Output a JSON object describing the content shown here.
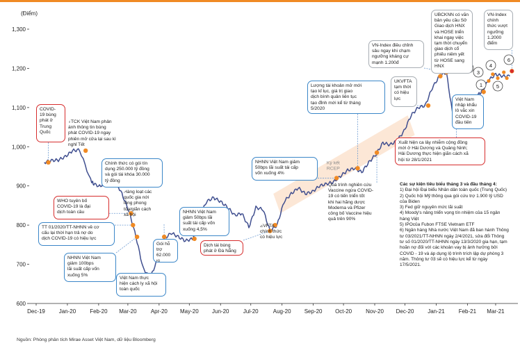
{
  "chart_data": {
    "type": "line",
    "title": "",
    "ylabel": "(Điểm)",
    "xlabel": "",
    "ylim": [
      600,
      1300
    ],
    "yticks": [
      "1,300",
      "1,200",
      "1,100",
      "1,000",
      "900",
      "800",
      "700",
      "600"
    ],
    "xticks": [
      "Dec-19",
      "Jan-20",
      "Feb-20",
      "Mar-20",
      "Apr-20",
      "May-20",
      "Jun-20",
      "Jul-20",
      "Aug-20",
      "Sep-20",
      "Oct-20",
      "Nov-20",
      "Dec-20",
      "Jan-21",
      "Feb-21",
      "Mar-21"
    ],
    "series": [
      {
        "name": "",
        "color": "#3f4e8f",
        "x": [
          "2019-12-16",
          "2019-12-23",
          "2019-12-30",
          "2020-01-06",
          "2020-01-13",
          "2020-01-20",
          "2020-01-31",
          "2020-02-03",
          "2020-02-10",
          "2020-02-17",
          "2020-02-24",
          "2020-03-02",
          "2020-03-09",
          "2020-03-16",
          "2020-03-23",
          "2020-03-30",
          "2020-04-06",
          "2020-04-13",
          "2020-04-20",
          "2020-04-27",
          "2020-05-04",
          "2020-05-11",
          "2020-05-18",
          "2020-05-25",
          "2020-06-01",
          "2020-06-08",
          "2020-06-15",
          "2020-06-22",
          "2020-06-29",
          "2020-07-06",
          "2020-07-13",
          "2020-07-20",
          "2020-07-27",
          "2020-08-03",
          "2020-08-10",
          "2020-08-17",
          "2020-08-24",
          "2020-08-31",
          "2020-09-07",
          "2020-09-14",
          "2020-09-21",
          "2020-09-28",
          "2020-10-05",
          "2020-10-12",
          "2020-10-19",
          "2020-10-26",
          "2020-11-02",
          "2020-11-09",
          "2020-11-16",
          "2020-11-23",
          "2020-11-30",
          "2020-12-07",
          "2020-12-14",
          "2020-12-21",
          "2020-12-28",
          "2021-01-04",
          "2021-01-11",
          "2021-01-18",
          "2021-01-25",
          "2021-02-01",
          "2021-02-08",
          "2021-02-17",
          "2021-02-22",
          "2021-03-01",
          "2021-03-08",
          "2021-03-15",
          "2021-03-22"
        ],
        "y": [
          960,
          965,
          966,
          975,
          990,
          992,
          915,
          905,
          898,
          930,
          915,
          880,
          835,
          770,
          690,
          665,
          710,
          765,
          780,
          770,
          760,
          765,
          820,
          860,
          870,
          860,
          845,
          825,
          830,
          795,
          845,
          840,
          785,
          800,
          860,
          880,
          895,
          880,
          885,
          900,
          905,
          910,
          925,
          940,
          945,
          935,
          960,
          980,
          1010,
          1005,
          1015,
          1040,
          1080,
          1100,
          1105,
          1150,
          1180,
          1190,
          1070,
          1095,
          1120,
          1130,
          1140,
          1170,
          1185,
          1180,
          1180
        ]
      }
    ],
    "markers": [
      {
        "label": "1",
        "date": "2021-03-01",
        "value": 1168
      },
      {
        "label": "2",
        "date": "2021-03-05",
        "value": 1185
      },
      {
        "label": "3",
        "date": "2021-03-10",
        "value": 1175
      },
      {
        "label": "4",
        "date": "2021-03-16",
        "value": 1190
      },
      {
        "label": "5",
        "date": "2021-03-19",
        "value": 1175
      },
      {
        "label": "6",
        "date": "2021-03-24",
        "value": 1193
      }
    ],
    "band": {
      "label": "Kỳ kết\nRCEP",
      "from_date": "2020-08-20",
      "to_date": "2020-11-20"
    }
  },
  "annotations": [
    {
      "id": "covid19",
      "style": "red",
      "text": "COVID-\n19 bùng\nphát ở\nTrung\nQuốc"
    },
    {
      "id": "ttck",
      "style": "plain",
      "text": "TTCK Việt Nam phản\nánh thông tin bùng\nphát COVID-19 ngay\nphiên mở cửa lại sau kì\nnghỉ Tết"
    },
    {
      "id": "chinhthuc",
      "style": "blue",
      "text": "Chính thức có gói tín\ndụng 250.000 tỷ đồng\nvà gói tài khóa 30.000\ntỷ đồng"
    },
    {
      "id": "who",
      "style": "red",
      "text": "WHO tuyên bố\nCOVID-19 là đại\ndịch toàn cầu"
    },
    {
      "id": "tt01",
      "style": "blue",
      "text": "TT 01/2020/TT-NHNN về cơ\ncấu lại thời hạn trả nợ do\ndịch COVID-19 có hiệu lực"
    },
    {
      "id": "nhnn100",
      "style": "blue",
      "text": "NHNN Việt Nam\ngiảm 100bps\nlãi suất cấp vốn\nxuống 5%"
    },
    {
      "id": "cachly",
      "style": "blue",
      "text": "Việt Nam thực\nhiện cách ly xã hội\ntoàn quốc"
    },
    {
      "id": "hangloat",
      "style": "plain",
      "text": "Hàng loạt các\nquốc gia nới\nlỏng phong\ntỏa/giãn cách\nxã hội"
    },
    {
      "id": "goiho",
      "style": "blue",
      "text": "Gói hỗ\ntrợ\n62.000 tỷ"
    },
    {
      "id": "nhnn50a",
      "style": "blue",
      "text": "NHNN Việt Nam\ngiảm 50bps lãi\nsuất tái cấp vốn\nxuống 4,5%"
    },
    {
      "id": "danang",
      "style": "red",
      "text": "Dịch tái bùng\nphát ở Đà Nẵng"
    },
    {
      "id": "evfta",
      "style": "plain",
      "text": "EVFTA\nchính thức\ncó hiệu lực"
    },
    {
      "id": "nhnn50b",
      "style": "blue",
      "text": "NHNN Việt Nam giảm\n50bps lãi suất tái cấp\nvốn xuống 4%"
    },
    {
      "id": "luonggiaodich",
      "style": "blue",
      "text": "Lượng tài khoản mở mới\ntạo kỉ lục, giá trị giao\ndịch bình quân liên tục\ntạo đỉnh mới kể từ tháng\n5/2020"
    },
    {
      "id": "vaccine",
      "style": "plain",
      "text": "Quá trình nghiên cứu\nVaccine ngừa COVID-\n19 có tiến triển tốt\nkhi hai hãng dược\nModerna và Pfizer\ncông bố Vaccine hiệu\nquả trên 90%"
    },
    {
      "id": "vnindex_dieuchinh",
      "style": "gray",
      "text": "VN-Index điều chỉnh\nsâu ngay khi chạm\nngưỡng kháng cự\nmạnh 1.200đ"
    },
    {
      "id": "ukvfta",
      "style": "gray",
      "text": "UKVFTA\ntạm thời\ncó hiệu\nlực"
    },
    {
      "id": "ubcknn",
      "style": "gray",
      "text": "UBCKNN có văn\nbản yêu cầu Sở\nGiao dịch HNX\nvà HOSE triển\nkhai ngay việc\ntạm thời chuyển\ngiao dịch cổ\nphiếu niêm yết\ntừ HOSE sang\nHNX"
    },
    {
      "id": "vnindex_vuot",
      "style": "gray",
      "text": "VN-Index\nchính\nthức vượt\nngưỡng\n1.2000\nđiểm"
    },
    {
      "id": "nhapkhau",
      "style": "blue",
      "text": "Việt Nam\nnhập khẩu\nlô vắc xin\nCOVID-19\nđầu tiên"
    },
    {
      "id": "xuathien",
      "style": "red",
      "text": "Xuất hiện ca lây nhiễm cộng đồng\nmới ở Hải Dương và Quảng Ninh;\nHải Dương thực hiện giãn cách xã\nhội từ 28/1/2021"
    }
  ],
  "events": {
    "title": "Các sự kiện tiêu biểu tháng 3 và đầu tháng 4:",
    "items": [
      "1)   Đại hội Đại biểu Nhân dân toàn quốc (Trung Quốc)",
      "2) Quốc hội Mỹ thông qua gói cứu trợ 1.900 tỷ USD của Biden",
      "3) Fed giữ nguyên mức lãi suất",
      "4) Moody's nâng triển vọng tín nhiệm của 15 ngân hàng Việt",
      "5) IPOcủa Fubon FTSE Vietnam ETF",
      "6) Ngân hàng Nhà nước Việt Nam đã ban hành Thông tư 03/2021/TT-NHNN ngày 2/4/2021, sửa đổi Thông tư số 01/2020/TT-NHNN ngày 13/3/2020 gia hạn, tạm hoãn nợ đối với các khoản vay bị ảnh hưởng bởi COVID - 19 và áp dụng lộ trình trích lập dự phòng 3 năm. Thông tư 03 sẽ có hiệu lực kể từ ngày 17/5/2021."
    ]
  },
  "source": "Nguồn: Phòng phân tích Mirae Asset Việt Nam, dữ liệu Bloomberg"
}
